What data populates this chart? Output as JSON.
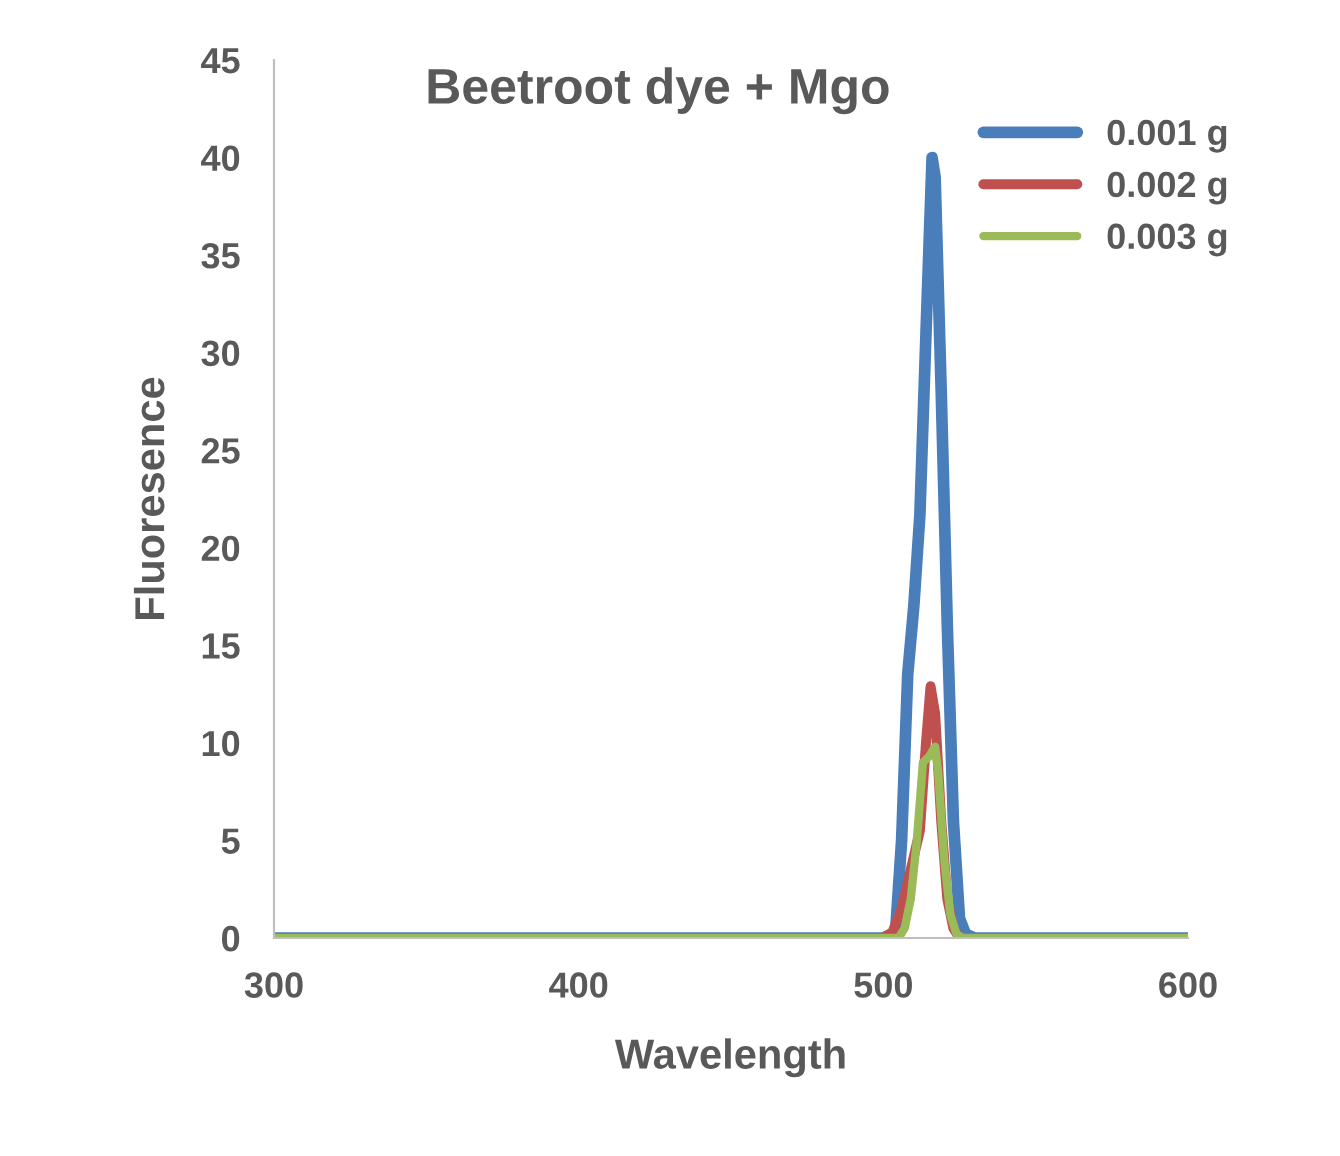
{
  "chart_data": {
    "type": "line",
    "title": "Beetroot dye + Mgo",
    "xlabel": "Wavelength",
    "ylabel": "Fluoresence",
    "xlim": [
      300,
      600
    ],
    "xticks": [
      300,
      400,
      500,
      600
    ],
    "ylim": [
      0,
      45
    ],
    "yticks": [
      0,
      5,
      10,
      15,
      20,
      25,
      30,
      35,
      40,
      45
    ],
    "grid": false,
    "legend": "top right",
    "marker": "none",
    "line_style": "solid",
    "series": [
      {
        "name": "0.001 g",
        "color": "#4a7ebb",
        "x": [
          300,
          500,
          504,
          506,
          508,
          510,
          512,
          514,
          516,
          517,
          519,
          521,
          523,
          525,
          527,
          530,
          600
        ],
        "values": [
          0,
          0,
          0.3,
          5,
          13.5,
          17,
          21.7,
          31,
          40,
          39,
          28,
          16,
          6,
          1,
          0.2,
          0,
          0
        ]
      },
      {
        "name": "0.002 g",
        "color": "#c0504d",
        "x": [
          300,
          500,
          503,
          506,
          509,
          512,
          514,
          515.5,
          517,
          519,
          521,
          523,
          525,
          530,
          600
        ],
        "values": [
          0,
          0,
          0.3,
          1.5,
          3.5,
          5.5,
          10,
          12.9,
          11.5,
          6,
          2,
          0.5,
          0,
          0,
          0
        ]
      },
      {
        "name": "0.003 g",
        "color": "#9bbb59",
        "x": [
          300,
          505,
          507,
          509,
          511,
          513,
          515,
          517,
          518,
          520,
          522,
          524,
          526,
          530,
          600
        ],
        "values": [
          0,
          0,
          0.5,
          2,
          5,
          9,
          9.3,
          9.8,
          8.5,
          4,
          1.2,
          0.2,
          0,
          0,
          0
        ]
      }
    ]
  }
}
